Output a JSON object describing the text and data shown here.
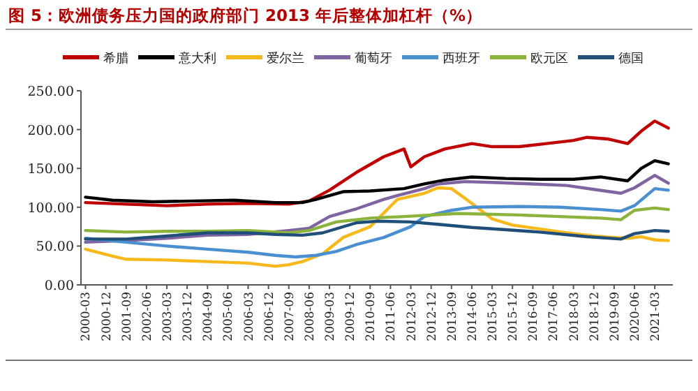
{
  "chart_data": {
    "type": "line",
    "title": "图 5：欧洲债务压力国的政府部门 2013 年后整体加杠杆（%）",
    "legend": "top",
    "marker": "none",
    "line_style": "solid",
    "xlim": [
      "2000-01",
      "2021-11"
    ],
    "xticks": [
      "2000-03",
      "2000-12",
      "2001-09",
      "2002-06",
      "2003-03",
      "2003-12",
      "2004-09",
      "2005-06",
      "2006-03",
      "2006-12",
      "2007-09",
      "2008-06",
      "2009-03",
      "2009-12",
      "2010-09",
      "2011-06",
      "2012-03",
      "2012-12",
      "2013-09",
      "2014-06",
      "2015-03",
      "2015-12",
      "2016-09",
      "2017-06",
      "2018-03",
      "2018-12",
      "2019-09",
      "2020-06",
      "2021-03"
    ],
    "ylim": [
      0,
      250
    ],
    "yticks": [
      {
        "value": 0,
        "label": "0.00"
      },
      {
        "value": 50,
        "label": "50.00"
      },
      {
        "value": 100,
        "label": "100.00"
      },
      {
        "value": 150,
        "label": "150.00"
      },
      {
        "value": 200,
        "label": "200.00"
      },
      {
        "value": 250,
        "label": "250.00"
      }
    ],
    "series": [
      {
        "name": "希腊",
        "color": "#c00000",
        "x": [
          "2000-03",
          "2001-09",
          "2003-03",
          "2004-09",
          "2006-03",
          "2007-09",
          "2008-06",
          "2009-03",
          "2010-03",
          "2011-03",
          "2011-12",
          "2012-03",
          "2012-09",
          "2013-06",
          "2014-06",
          "2015-03",
          "2016-03",
          "2017-03",
          "2018-03",
          "2018-09",
          "2019-06",
          "2020-03",
          "2020-09",
          "2021-03",
          "2021-09"
        ],
        "values": [
          106,
          104,
          102,
          104,
          105,
          104,
          108,
          122,
          145,
          165,
          175,
          152,
          165,
          175,
          182,
          178,
          178,
          182,
          186,
          190,
          188,
          182,
          198,
          211,
          202
        ]
      },
      {
        "name": "意大利",
        "color": "#000000",
        "x": [
          "2000-03",
          "2001-03",
          "2002-09",
          "2004-03",
          "2005-09",
          "2007-03",
          "2008-03",
          "2008-09",
          "2009-09",
          "2010-09",
          "2011-12",
          "2012-09",
          "2013-06",
          "2014-06",
          "2015-09",
          "2016-12",
          "2018-03",
          "2019-03",
          "2020-03",
          "2020-09",
          "2021-03",
          "2021-09"
        ],
        "values": [
          113,
          109,
          107,
          108,
          109,
          106,
          106,
          110,
          120,
          121,
          124,
          130,
          135,
          139,
          137,
          136,
          136,
          139,
          134,
          150,
          160,
          156
        ]
      },
      {
        "name": "爱尔兰",
        "color": "#f7b81c",
        "x": [
          "2000-03",
          "2001-03",
          "2001-09",
          "2003-03",
          "2004-09",
          "2006-03",
          "2007-03",
          "2007-09",
          "2008-03",
          "2008-12",
          "2009-09",
          "2010-09",
          "2011-09",
          "2012-09",
          "2013-03",
          "2013-09",
          "2014-06",
          "2015-03",
          "2015-12",
          "2016-12",
          "2017-12",
          "2018-12",
          "2019-09",
          "2020-03",
          "2020-09",
          "2021-03",
          "2021-09"
        ],
        "values": [
          46,
          37,
          33,
          32,
          30,
          28,
          24,
          26,
          30,
          40,
          61,
          75,
          110,
          118,
          125,
          124,
          105,
          85,
          77,
          72,
          67,
          63,
          61,
          60,
          62,
          58,
          57
        ]
      },
      {
        "name": "葡萄牙",
        "color": "#8064a2",
        "x": [
          "2000-03",
          "2001-09",
          "2003-03",
          "2004-09",
          "2006-03",
          "2007-09",
          "2008-06",
          "2009-03",
          "2010-03",
          "2011-03",
          "2011-09",
          "2012-09",
          "2013-03",
          "2014-03",
          "2015-03",
          "2016-09",
          "2017-12",
          "2018-12",
          "2019-12",
          "2020-06",
          "2021-03",
          "2021-09"
        ],
        "values": [
          55,
          57,
          60,
          64,
          65,
          70,
          73,
          88,
          98,
          110,
          115,
          124,
          130,
          133,
          132,
          130,
          128,
          123,
          118,
          125,
          141,
          131
        ]
      },
      {
        "name": "西班牙",
        "color": "#4a8fd0",
        "x": [
          "2000-03",
          "2001-09",
          "2003-03",
          "2004-09",
          "2006-03",
          "2007-03",
          "2007-12",
          "2008-09",
          "2009-06",
          "2010-03",
          "2011-03",
          "2012-03",
          "2012-09",
          "2013-09",
          "2014-06",
          "2016-03",
          "2017-09",
          "2019-03",
          "2019-12",
          "2020-06",
          "2021-03",
          "2021-09"
        ],
        "values": [
          60,
          55,
          50,
          46,
          42,
          38,
          36,
          38,
          43,
          52,
          61,
          75,
          88,
          96,
          100,
          101,
          100,
          97,
          95,
          102,
          124,
          122
        ]
      },
      {
        "name": "欧元区",
        "color": "#8cb43c",
        "x": [
          "2000-03",
          "2001-09",
          "2003-03",
          "2004-09",
          "2006-03",
          "2007-09",
          "2008-06",
          "2009-06",
          "2010-09",
          "2011-12",
          "2013-12",
          "2016-03",
          "2017-09",
          "2019-03",
          "2019-12",
          "2020-06",
          "2021-03",
          "2021-09"
        ],
        "values": [
          70,
          68,
          69,
          69,
          70,
          67,
          70,
          81,
          86,
          88,
          92,
          90,
          88,
          86,
          84,
          96,
          99,
          97
        ]
      },
      {
        "name": "德国",
        "color": "#1f4e79",
        "x": [
          "2000-03",
          "2001-09",
          "2003-03",
          "2004-09",
          "2006-03",
          "2007-03",
          "2008-03",
          "2008-12",
          "2010-03",
          "2010-12",
          "2012-03",
          "2013-03",
          "2014-06",
          "2015-09",
          "2016-12",
          "2018-09",
          "2019-12",
          "2020-06",
          "2021-03",
          "2021-09"
        ],
        "values": [
          59,
          59,
          63,
          67,
          67,
          65,
          64,
          67,
          80,
          82,
          81,
          78,
          74,
          71,
          68,
          62,
          59,
          66,
          70,
          69
        ]
      }
    ]
  }
}
